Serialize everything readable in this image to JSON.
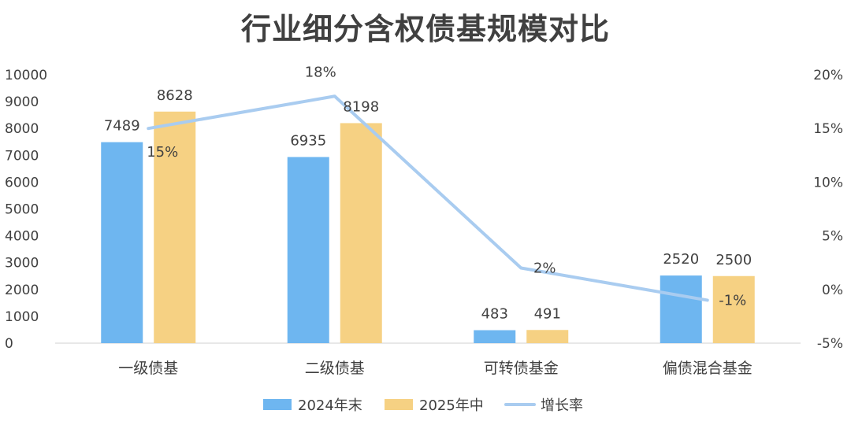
{
  "chart_data": {
    "type": "bar",
    "title": "行业细分含权债基规模对比",
    "categories": [
      "一级债基",
      "二级债基",
      "可转债基金",
      "偏债混合基金"
    ],
    "series": [
      {
        "name": "2024年末",
        "type": "bar",
        "axis": "left",
        "color": "#6EB6F0",
        "values": [
          7489,
          6935,
          483,
          2520
        ],
        "labels": [
          "7489",
          "6935",
          "483",
          "2520"
        ]
      },
      {
        "name": "2025年中",
        "type": "bar",
        "axis": "left",
        "color": "#F6D183",
        "values": [
          8628,
          8198,
          491,
          2500
        ],
        "labels": [
          "8628",
          "8198",
          "491",
          "2500"
        ]
      },
      {
        "name": "增长率",
        "type": "line",
        "axis": "right",
        "color": "#A9CCF0",
        "values": [
          15,
          18,
          2,
          -1
        ],
        "labels": [
          "15%",
          "18%",
          "2%",
          "-1%"
        ]
      }
    ],
    "y_left": {
      "min": 0,
      "max": 10000,
      "step": 1000,
      "ticks": [
        "0",
        "1000",
        "2000",
        "3000",
        "4000",
        "5000",
        "6000",
        "7000",
        "8000",
        "9000",
        "10000"
      ]
    },
    "y_right": {
      "min": -5,
      "max": 20,
      "step": 5,
      "ticks": [
        "-5%",
        "0%",
        "5%",
        "10%",
        "15%",
        "20%"
      ]
    },
    "grid": false,
    "legend": "bottom"
  }
}
